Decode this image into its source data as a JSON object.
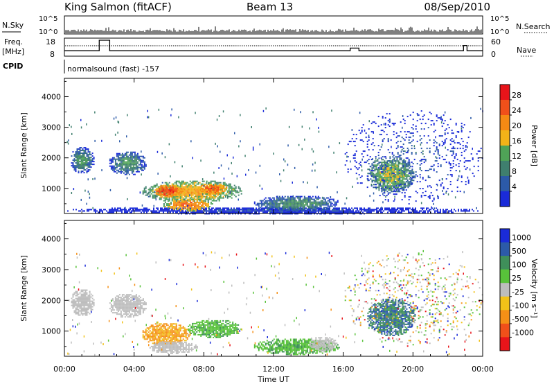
{
  "header": {
    "station": "King Salmon (fitACF)",
    "beam": "Beam 13",
    "date": "08/Sep/2010"
  },
  "status_panels": {
    "nsky_label": "N.Sky",
    "nsearch_label": "N.Search",
    "counts_ticks": [
      "10^5",
      "10^0"
    ],
    "freq_label_1": "Freq.",
    "freq_label_2": "[MHz]",
    "freq_ticks": [
      "18",
      "8"
    ],
    "nave_label": "Nave",
    "nave_ticks": [
      "60",
      "0"
    ],
    "cpid_label": "CPID",
    "cpid_text": "normalsound (fast) -157"
  },
  "colors": {
    "power_scale": [
      "#1a2bd8",
      "#2c5aa8",
      "#3f7f6e",
      "#4fa357",
      "#f2b318",
      "#f58a14",
      "#f0501a",
      "#e8141a"
    ],
    "velocity_scale": [
      "#1a2bd8",
      "#2c5aa8",
      "#3f8f5a",
      "#58c23a",
      "#bdbdbd",
      "#f2c218",
      "#f59016",
      "#f0501a",
      "#e8141a"
    ]
  },
  "chart_data": [
    {
      "type": "heatmap",
      "panel": "power",
      "ylabel": "Slant Range [km]",
      "yticks": [
        "4000",
        "3000",
        "2000",
        "1000"
      ],
      "ylim": [
        180,
        4600
      ],
      "xlim": [
        0,
        24
      ],
      "colorbar_label": "Power [dB]",
      "colorbar_ticks": [
        "28",
        "24",
        "20",
        "16",
        "12",
        "8",
        "4"
      ],
      "colorbar_range": [
        0,
        32
      ],
      "features": [
        {
          "t0": 0.0,
          "t1": 24.0,
          "r0": 180,
          "r1": 420,
          "level": 4
        },
        {
          "t0": 0.3,
          "t1": 1.7,
          "r0": 1500,
          "r1": 2400,
          "level": 12
        },
        {
          "t0": 2.5,
          "t1": 4.7,
          "r0": 1450,
          "r1": 2250,
          "level": 12
        },
        {
          "t0": 4.4,
          "t1": 10.2,
          "r0": 550,
          "r1": 1300,
          "level": 20
        },
        {
          "t0": 5.1,
          "t1": 6.8,
          "r0": 700,
          "r1": 1150,
          "level": 28
        },
        {
          "t0": 7.6,
          "t1": 9.4,
          "r0": 800,
          "r1": 1200,
          "level": 26
        },
        {
          "t0": 5.6,
          "t1": 8.5,
          "r0": 280,
          "r1": 700,
          "level": 24
        },
        {
          "t0": 10.8,
          "t1": 15.8,
          "r0": 250,
          "r1": 800,
          "level": 12
        },
        {
          "t0": 17.3,
          "t1": 20.1,
          "r0": 850,
          "r1": 2100,
          "level": 16
        },
        {
          "t0": 16.0,
          "t1": 24.0,
          "r0": 500,
          "r1": 3600,
          "level": 6
        }
      ]
    },
    {
      "type": "heatmap",
      "panel": "velocity",
      "ylabel": "Slant Range [km]",
      "yticks": [
        "4000",
        "3000",
        "2000",
        "1000"
      ],
      "ylim": [
        180,
        4600
      ],
      "xlim": [
        0,
        24
      ],
      "xlabel": "Time UT",
      "xticks": [
        "00:00",
        "04:00",
        "08:00",
        "12:00",
        "16:00",
        "20:00",
        "00:00"
      ],
      "colorbar_label": "Velocity [m s⁻¹]",
      "colorbar_ticks": [
        "1000",
        "500",
        "100",
        "25",
        "-25",
        "-100",
        "-500",
        "-1000"
      ],
      "features": [
        {
          "t0": 0.3,
          "t1": 1.7,
          "r0": 1500,
          "r1": 2400,
          "category": "ground"
        },
        {
          "t0": 2.5,
          "t1": 4.7,
          "r0": 1450,
          "r1": 2250,
          "category": "ground"
        },
        {
          "t0": 4.4,
          "t1": 7.2,
          "r0": 550,
          "r1": 1300,
          "category": "-100"
        },
        {
          "t0": 4.8,
          "t1": 7.6,
          "r0": 280,
          "r1": 700,
          "category": "ground"
        },
        {
          "t0": 7.0,
          "t1": 10.2,
          "r0": 800,
          "r1": 1400,
          "category": "100"
        },
        {
          "t0": 10.8,
          "t1": 15.8,
          "r0": 250,
          "r1": 800,
          "category": "100"
        },
        {
          "t0": 14.0,
          "t1": 15.6,
          "r0": 350,
          "r1": 850,
          "category": "ground"
        },
        {
          "t0": 17.3,
          "t1": 20.1,
          "r0": 850,
          "r1": 2100,
          "category": "500"
        },
        {
          "t0": 16.0,
          "t1": 24.0,
          "r0": 500,
          "r1": 3600,
          "category": "mixed"
        }
      ]
    }
  ]
}
